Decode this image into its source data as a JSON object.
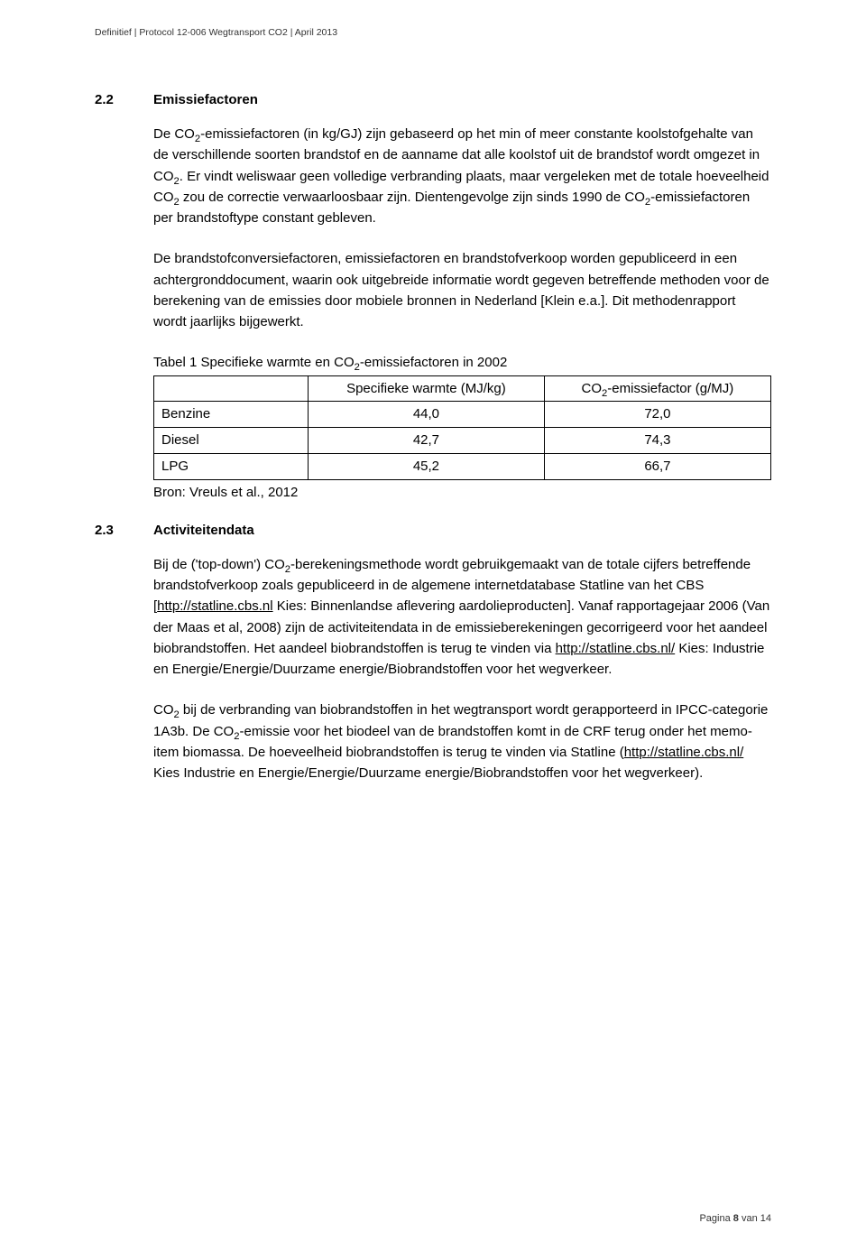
{
  "header": "Definitief | Protocol 12-006 Wegtransport CO2 | April 2013",
  "s22": {
    "num": "2.2",
    "title": "Emissiefactoren",
    "p1_a": "De CO",
    "p1_b": "-emissiefactoren (in kg/GJ) zijn gebaseerd op het min of meer constante koolstofgehalte van de verschillende soorten brandstof en de aanname dat alle koolstof uit de brandstof wordt omgezet in CO",
    "p1_c": ". Er vindt weliswaar geen volledige verbranding plaats, maar vergeleken met de totale hoeveelheid CO",
    "p1_d": " zou de correctie verwaarloosbaar zijn. Dientengevolge zijn sinds 1990 de CO",
    "p1_e": "-emissiefactoren per brandstoftype constant gebleven.",
    "p2": "De brandstofconversiefactoren, emissiefactoren en brandstofverkoop worden gepubliceerd in een achtergronddocument, waarin ook uitgebreide informatie wordt gegeven betreffende methoden voor de berekening van de emissies door mobiele bronnen in Nederland [Klein e.a.]. Dit methodenrapport wordt jaarlijks bijgewerkt.",
    "tableCaption_a": "Tabel 1 Specifieke warmte en CO",
    "tableCaption_b": "-emissiefactoren in 2002",
    "table": {
      "col1": "Specifieke warmte (MJ/kg)",
      "col2_a": "CO",
      "col2_b": "-emissiefactor (g/MJ)",
      "rows": [
        {
          "label": "Benzine",
          "v1": "44,0",
          "v2": "72,0"
        },
        {
          "label": "Diesel",
          "v1": "42,7",
          "v2": "74,3"
        },
        {
          "label": "LPG",
          "v1": "45,2",
          "v2": "66,7"
        }
      ]
    },
    "source": "Bron: Vreuls et al., 2012"
  },
  "s23": {
    "num": "2.3",
    "title": "Activiteitendata",
    "p1_a": "Bij de ('top-down') CO",
    "p1_b": "-berekeningsmethode wordt gebruikgemaakt van de totale cijfers betreffende brandstofverkoop zoals gepubliceerd in de algemene internetdatabase Statline van het CBS [",
    "p1_link1": "http://statline.cbs.nl",
    "p1_c": " Kies: Binnenlandse aflevering aardolieproducten]. Vanaf rapportagejaar 2006 (Van der Maas et al, 2008) zijn de activiteitendata in de emissieberekeningen gecorrigeerd voor het aandeel biobrandstoffen. Het aandeel biobrandstoffen is terug te vinden via ",
    "p1_link2": "http://statline.cbs.nl/",
    "p1_d": " Kies: Industrie en Energie/Energie/Duurzame energie/Biobrandstoffen voor het  wegverkeer.",
    "p2_a": "CO",
    "p2_b": " bij de verbranding van biobrandstoffen in het wegtransport wordt gerapporteerd in IPCC-categorie 1A3b. De CO",
    "p2_c": "-emissie voor het biodeel van de brandstoffen komt in de CRF terug onder het memo-item biomassa. De hoeveelheid biobrandstoffen is terug te vinden via Statline (",
    "p2_link": "http://statline.cbs.nl/",
    "p2_d": " Kies Industrie en Energie/Energie/Duurzame energie/Biobrandstoffen voor het wegverkeer)."
  },
  "footer": {
    "a": "Pagina ",
    "b": "8",
    "c": " van 14"
  }
}
